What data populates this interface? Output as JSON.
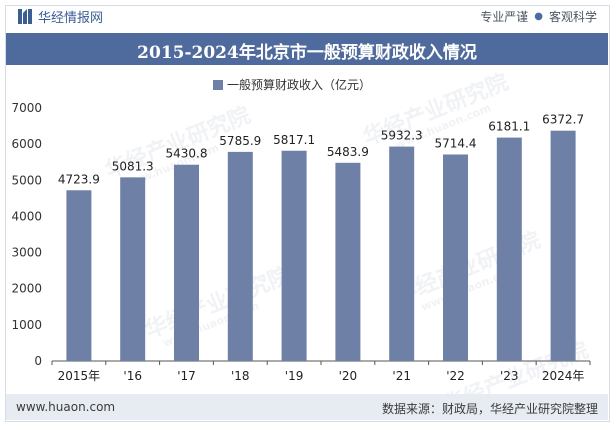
{
  "header": {
    "brand": "华经情报网",
    "slogan_left": "专业严谨",
    "slogan_right": "客观科学"
  },
  "watermark": {
    "text_cn": "华经产业研究院",
    "text_en": "www.huaon.com"
  },
  "footer": {
    "url": "www.huaon.com",
    "source": "数据来源：财政局，华经产业研究院整理"
  },
  "colors": {
    "title_bg": "#4f6a9c",
    "bar": "#6e80a6",
    "footer_bg": "#e7ebf2"
  },
  "chart_data": {
    "type": "bar",
    "title": "2015-2024年北京市一般预算财政收入情况",
    "categories": [
      "2015年",
      "'16",
      "'17",
      "'18",
      "'19",
      "'20",
      "'21",
      "'22",
      "'23",
      "2024年"
    ],
    "series": [
      {
        "name": "一般预算财政收入（亿元）",
        "values": [
          4723.9,
          5081.3,
          5430.8,
          5785.9,
          5817.1,
          5483.9,
          5932.3,
          5714.4,
          6181.1,
          6372.7
        ]
      }
    ],
    "ylim": [
      0,
      7000
    ],
    "yticks": [
      0,
      1000,
      2000,
      3000,
      4000,
      5000,
      6000,
      7000
    ],
    "grid": false,
    "legend_position": "top-center"
  }
}
